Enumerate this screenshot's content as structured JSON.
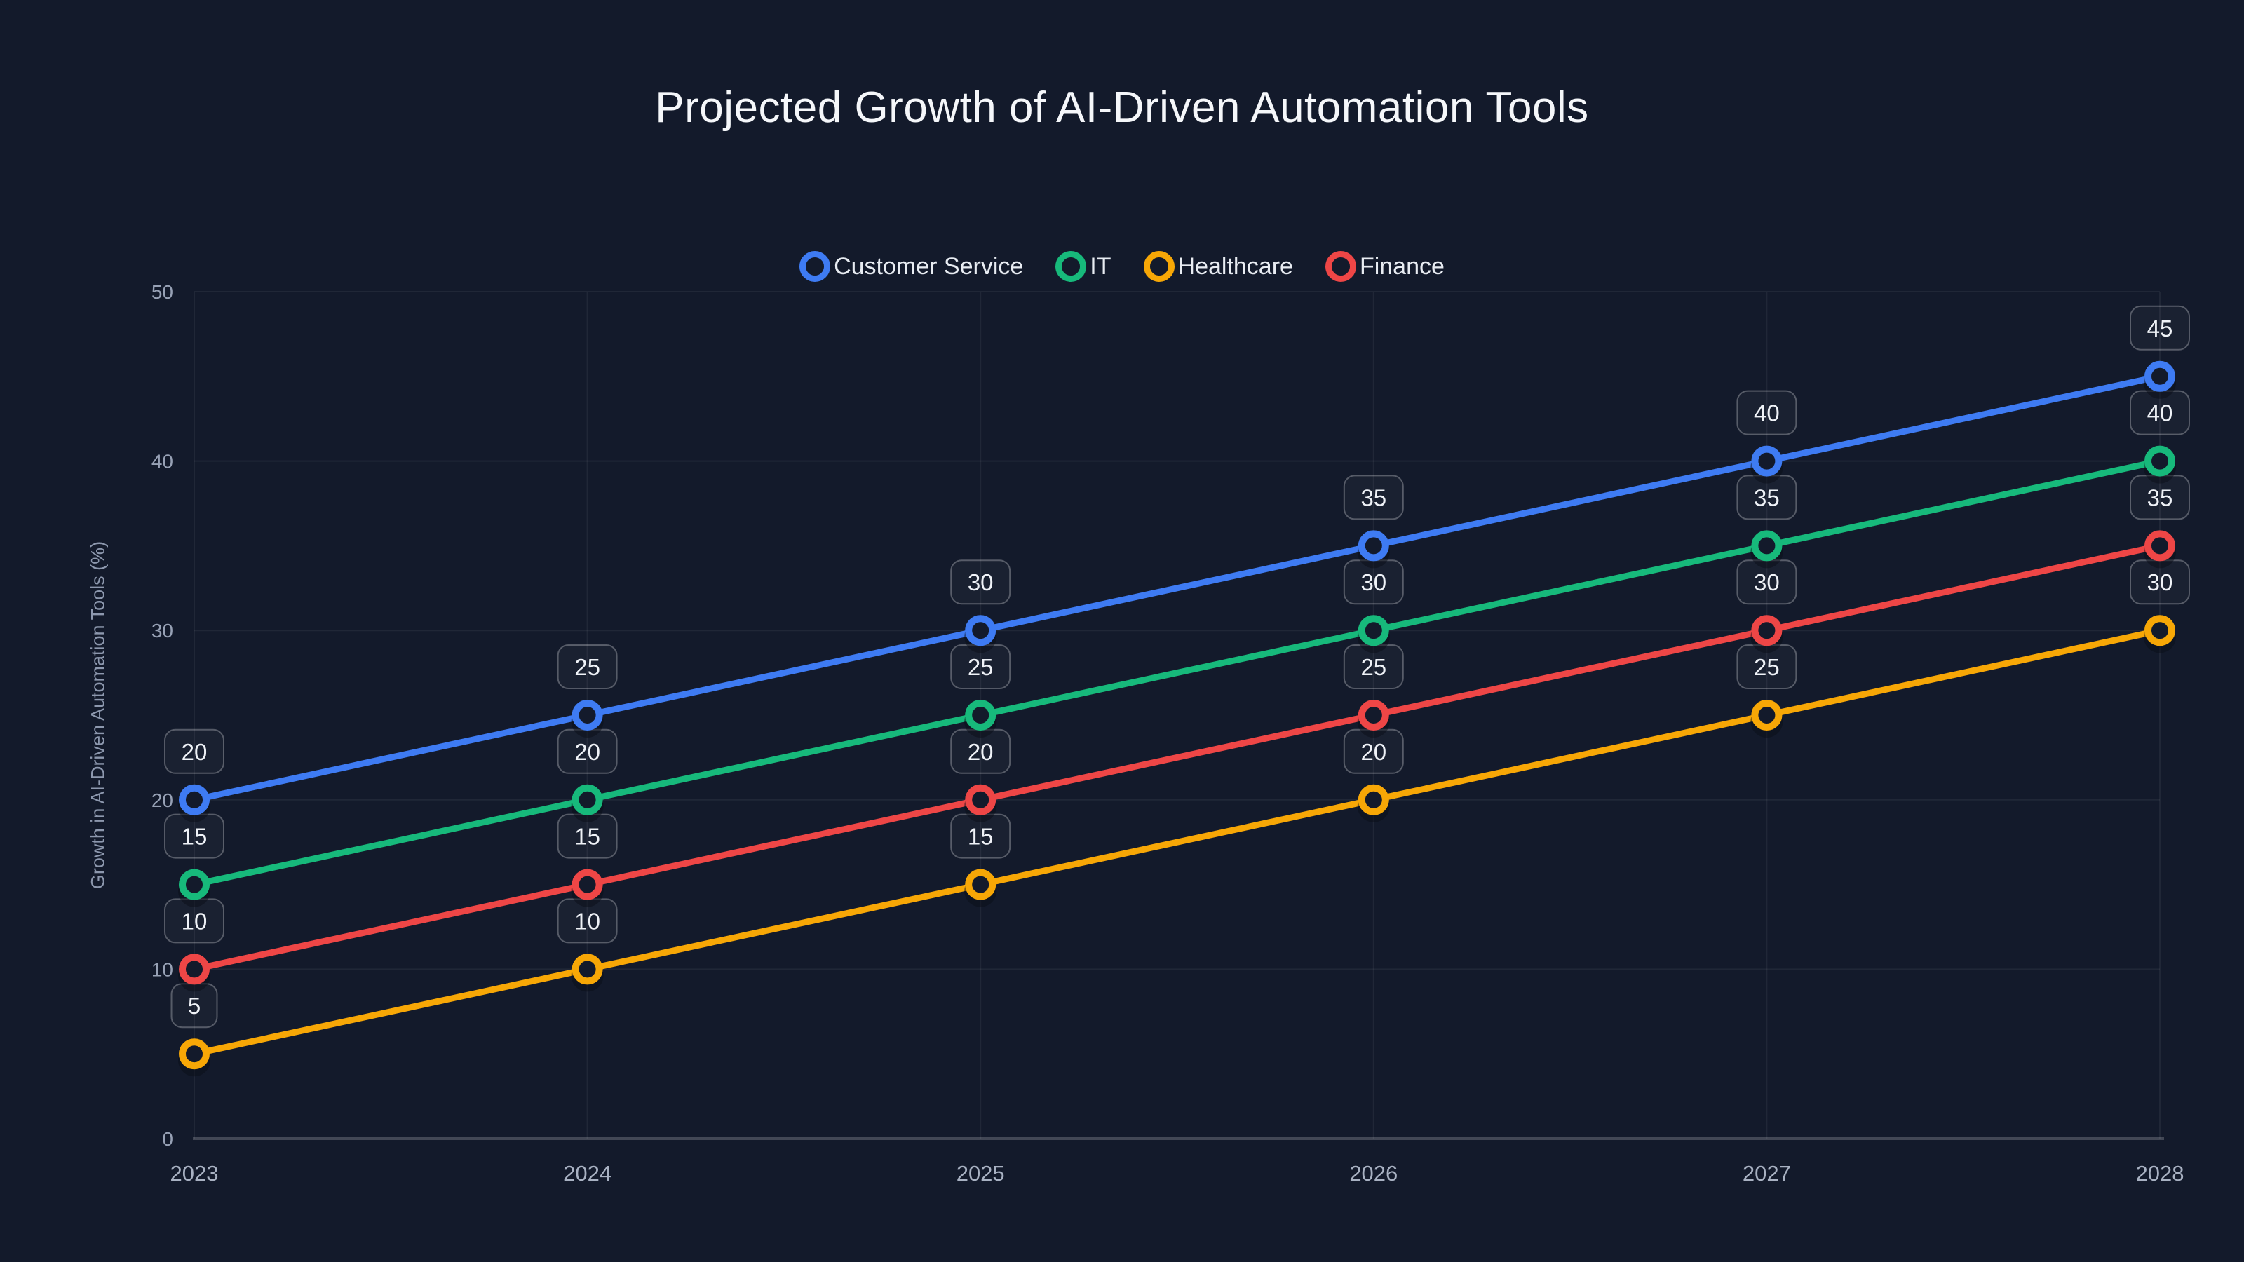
{
  "page": {
    "background": "#131A2B",
    "grid_color": "rgba(255,255,255,0.06)",
    "axis_line_color": "rgba(255,255,255,0.20)",
    "y_tick_color": "#97A1B5",
    "x_tick_color": "#A8B1C2",
    "label_box_fill": "rgba(255,255,255,0.03)",
    "label_box_border": "rgba(255,255,255,0.28)",
    "label_text_color": "#EFF2F7"
  },
  "chart_data": {
    "type": "line",
    "title": "Projected Growth of AI-Driven Automation Tools",
    "ylabel": "Growth in AI-Driven Automation Tools (%)",
    "xlabel": "",
    "x": [
      "2023",
      "2024",
      "2025",
      "2026",
      "2027",
      "2028"
    ],
    "ylim": [
      0,
      50
    ],
    "yticks": [
      0,
      10,
      20,
      30,
      40,
      50
    ],
    "grid": true,
    "legend_position": "top-center",
    "point_labels": true,
    "marker_style": "hollow-circle",
    "series": [
      {
        "name": "Customer Service",
        "color": "#3E7BF3",
        "values": [
          20,
          25,
          30,
          35,
          40,
          45
        ]
      },
      {
        "name": "IT",
        "color": "#17B97B",
        "values": [
          15,
          20,
          25,
          30,
          35,
          40
        ]
      },
      {
        "name": "Healthcare",
        "color": "#F7A706",
        "values": [
          5,
          10,
          15,
          20,
          25,
          30
        ]
      },
      {
        "name": "Finance",
        "color": "#EE4646",
        "values": [
          10,
          15,
          20,
          25,
          30,
          35
        ]
      }
    ]
  }
}
